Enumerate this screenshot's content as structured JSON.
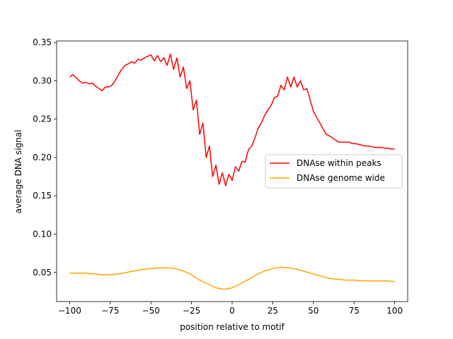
{
  "chart_data": {
    "type": "line",
    "title": "",
    "xlabel": "position relative to motif",
    "ylabel": "average DNA signal",
    "xlim": [
      -108,
      108
    ],
    "ylim": [
      0.012,
      0.352
    ],
    "xticks": [
      -100,
      -75,
      -50,
      -25,
      0,
      25,
      50,
      75,
      100
    ],
    "xtick_labels": [
      "−100",
      "−75",
      "−50",
      "−25",
      "0",
      "25",
      "50",
      "75",
      "100"
    ],
    "yticks": [
      0.05,
      0.1,
      0.15,
      0.2,
      0.25,
      0.3,
      0.35
    ],
    "ytick_labels": [
      "0.05",
      "0.10",
      "0.15",
      "0.20",
      "0.25",
      "0.30",
      "0.35"
    ],
    "grid": false,
    "legend_position": "center-right",
    "series": [
      {
        "name": "DNAse within peaks",
        "color": "#ff0000",
        "x": [
          -100,
          -98,
          -96,
          -94,
          -92,
          -90,
          -88,
          -86,
          -84,
          -82,
          -80,
          -78,
          -76,
          -74,
          -72,
          -70,
          -68,
          -66,
          -64,
          -62,
          -60,
          -58,
          -56,
          -54,
          -52,
          -50,
          -48,
          -46,
          -44,
          -42,
          -40,
          -38,
          -36,
          -34,
          -32,
          -30,
          -28,
          -26,
          -24,
          -22,
          -20,
          -18,
          -16,
          -14,
          -12,
          -10,
          -8,
          -6,
          -4,
          -2,
          0,
          2,
          4,
          6,
          8,
          10,
          12,
          14,
          16,
          18,
          20,
          22,
          24,
          26,
          28,
          30,
          32,
          34,
          36,
          38,
          40,
          42,
          44,
          46,
          48,
          50,
          52,
          54,
          56,
          58,
          60,
          62,
          64,
          66,
          68,
          70,
          72,
          74,
          76,
          78,
          80,
          82,
          84,
          86,
          88,
          90,
          92,
          94,
          96,
          98,
          100
        ],
        "values": [
          0.305,
          0.308,
          0.304,
          0.3,
          0.297,
          0.298,
          0.296,
          0.297,
          0.293,
          0.29,
          0.287,
          0.292,
          0.292,
          0.294,
          0.3,
          0.308,
          0.315,
          0.32,
          0.322,
          0.325,
          0.323,
          0.328,
          0.327,
          0.33,
          0.332,
          0.334,
          0.326,
          0.333,
          0.325,
          0.33,
          0.32,
          0.335,
          0.315,
          0.33,
          0.305,
          0.318,
          0.29,
          0.3,
          0.262,
          0.275,
          0.23,
          0.245,
          0.2,
          0.215,
          0.175,
          0.19,
          0.165,
          0.18,
          0.163,
          0.178,
          0.17,
          0.188,
          0.182,
          0.195,
          0.194,
          0.21,
          0.215,
          0.225,
          0.238,
          0.245,
          0.255,
          0.262,
          0.268,
          0.278,
          0.28,
          0.294,
          0.288,
          0.305,
          0.292,
          0.305,
          0.292,
          0.3,
          0.288,
          0.29,
          0.275,
          0.26,
          0.252,
          0.245,
          0.237,
          0.23,
          0.228,
          0.225,
          0.222,
          0.22,
          0.22,
          0.22,
          0.22,
          0.218,
          0.218,
          0.217,
          0.216,
          0.215,
          0.215,
          0.214,
          0.213,
          0.213,
          0.213,
          0.212,
          0.212,
          0.211,
          0.211
        ]
      },
      {
        "name": "DNAse genome wide",
        "color": "#ffa500",
        "x": [
          -100,
          -95,
          -90,
          -85,
          -80,
          -75,
          -70,
          -65,
          -60,
          -55,
          -50,
          -45,
          -40,
          -35,
          -30,
          -25,
          -20,
          -15,
          -10,
          -5,
          0,
          5,
          10,
          15,
          20,
          25,
          30,
          35,
          40,
          45,
          50,
          55,
          60,
          65,
          70,
          75,
          80,
          85,
          90,
          95,
          100
        ],
        "values": [
          0.049,
          0.049,
          0.049,
          0.048,
          0.047,
          0.047,
          0.048,
          0.05,
          0.052,
          0.054,
          0.055,
          0.056,
          0.056,
          0.055,
          0.052,
          0.047,
          0.04,
          0.035,
          0.03,
          0.028,
          0.03,
          0.035,
          0.041,
          0.047,
          0.052,
          0.055,
          0.057,
          0.056,
          0.054,
          0.051,
          0.048,
          0.045,
          0.042,
          0.041,
          0.04,
          0.04,
          0.039,
          0.039,
          0.039,
          0.039,
          0.038
        ]
      }
    ]
  }
}
